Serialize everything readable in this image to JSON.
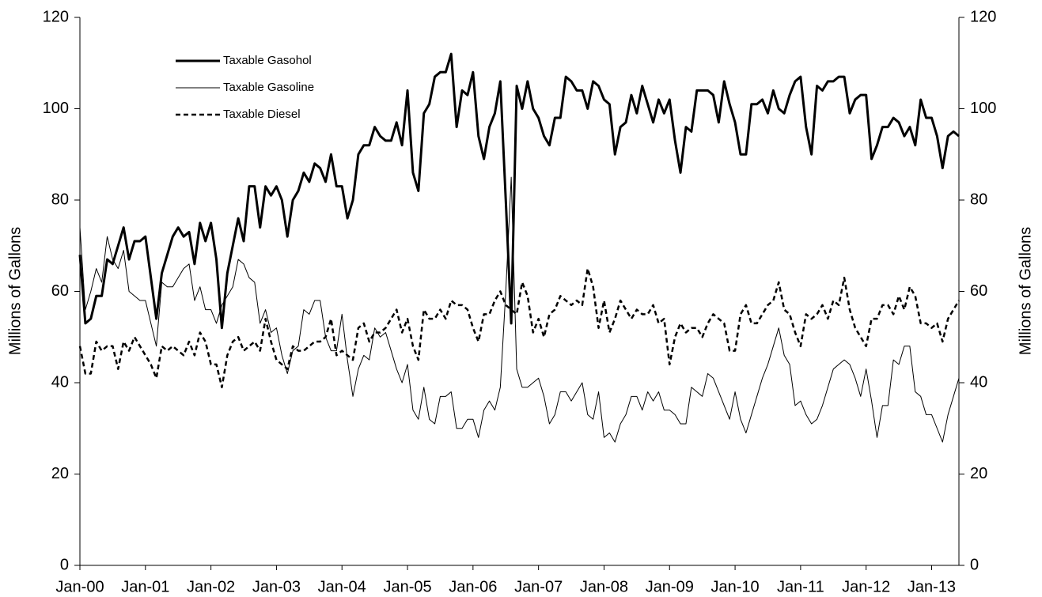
{
  "chart_data": {
    "type": "line",
    "y_label": "Millions of Gallons",
    "y2_label": "Millions of Gallons",
    "categories": [
      "Jan-00",
      null,
      null,
      null,
      null,
      null,
      null,
      null,
      null,
      null,
      null,
      null,
      "Jan-01",
      null,
      null,
      null,
      null,
      null,
      null,
      null,
      null,
      null,
      null,
      null,
      "Jan-02",
      null,
      null,
      null,
      null,
      null,
      null,
      null,
      null,
      null,
      null,
      null,
      "Jan-03",
      null,
      null,
      null,
      null,
      null,
      null,
      null,
      null,
      null,
      null,
      null,
      "Jan-04",
      null,
      null,
      null,
      null,
      null,
      null,
      null,
      null,
      null,
      null,
      null,
      "Jan-05",
      null,
      null,
      null,
      null,
      null,
      null,
      null,
      null,
      null,
      null,
      null,
      "Jan-06",
      null,
      null,
      null,
      null,
      null,
      null,
      null,
      null,
      null,
      null,
      null,
      "Jan-07",
      null,
      null,
      null,
      null,
      null,
      null,
      null,
      null,
      null,
      null,
      null,
      "Jan-08",
      null,
      null,
      null,
      null,
      null,
      null,
      null,
      null,
      null,
      null,
      null,
      "Jan-09",
      null,
      null,
      null,
      null,
      null,
      null,
      null,
      null,
      null,
      null,
      null,
      "Jan-10",
      null,
      null,
      null,
      null,
      null,
      null,
      null,
      null,
      null,
      null,
      null,
      "Jan-11",
      null,
      null,
      null,
      null,
      null,
      null,
      null,
      null,
      null,
      null,
      null,
      "Jan-12",
      null,
      null,
      null,
      null,
      null,
      null,
      null,
      null,
      null,
      null,
      null,
      "Jan-13",
      null,
      null,
      null,
      null,
      null
    ],
    "series": [
      {
        "name": "Taxable Gasohol",
        "color": "#000000",
        "style": "solid",
        "linewidth": 3,
        "values": [
          68,
          53,
          54,
          59,
          59,
          67,
          66,
          70,
          74,
          67,
          71,
          71,
          72,
          63,
          54,
          64,
          68,
          72,
          74,
          72,
          73,
          66,
          75,
          71,
          75,
          67,
          52,
          64,
          70,
          76,
          71,
          83,
          83,
          74,
          83,
          81,
          83,
          80,
          72,
          80,
          82,
          86,
          84,
          88,
          87,
          84,
          90,
          83,
          83,
          76,
          80,
          90,
          92,
          92,
          96,
          94,
          93,
          93,
          97,
          92,
          104,
          86,
          82,
          99,
          101,
          107,
          108,
          108,
          112,
          96,
          104,
          103,
          108,
          94,
          89,
          96,
          99,
          106,
          80,
          53,
          105,
          100,
          106,
          100,
          98,
          94,
          92,
          98,
          98,
          107,
          106,
          104,
          104,
          100,
          106,
          105,
          102,
          101,
          90,
          96,
          97,
          103,
          99,
          105,
          101,
          97,
          102,
          99,
          102,
          93,
          86,
          96,
          95,
          104,
          104,
          104,
          103,
          97,
          106,
          101,
          97,
          90,
          90,
          101,
          101,
          102,
          99,
          104,
          100,
          99,
          103,
          106,
          107,
          96,
          90,
          105,
          104,
          106,
          106,
          107,
          107,
          99,
          102,
          103,
          103,
          89,
          92,
          96,
          96,
          98,
          97,
          94,
          96,
          92,
          102,
          98,
          98,
          94,
          87,
          94,
          95,
          94
        ]
      },
      {
        "name": "Taxable Gasoline",
        "color": "#000000",
        "style": "solid",
        "linewidth": 1,
        "values": [
          74,
          56,
          60,
          65,
          62,
          72,
          67,
          65,
          69,
          60,
          59,
          58,
          58,
          53,
          48,
          62,
          61,
          61,
          63,
          65,
          66,
          58,
          61,
          56,
          56,
          53,
          57,
          59,
          61,
          67,
          66,
          63,
          62,
          53,
          56,
          51,
          52,
          46,
          42,
          47,
          48,
          56,
          55,
          58,
          58,
          50,
          47,
          47,
          55,
          45,
          37,
          43,
          46,
          45,
          52,
          50,
          51,
          47,
          43,
          40,
          44,
          34,
          32,
          39,
          32,
          31,
          37,
          37,
          38,
          30,
          30,
          32,
          32,
          28,
          34,
          36,
          34,
          39,
          60,
          85,
          43,
          39,
          39,
          40,
          41,
          37,
          31,
          33,
          38,
          38,
          36,
          38,
          40,
          33,
          32,
          38,
          28,
          29,
          27,
          31,
          33,
          37,
          37,
          34,
          38,
          36,
          38,
          34,
          34,
          33,
          31,
          31,
          39,
          38,
          37,
          42,
          41,
          38,
          35,
          32,
          38,
          32,
          29,
          33,
          37,
          41,
          44,
          48,
          52,
          46,
          44,
          35,
          36,
          33,
          31,
          32,
          35,
          39,
          43,
          44,
          45,
          44,
          41,
          37,
          43,
          36,
          28,
          35,
          35,
          45,
          44,
          48,
          48,
          38,
          37,
          33,
          33,
          30,
          27,
          33,
          37,
          41
        ]
      },
      {
        "name": "Taxable Diesel",
        "color": "#000000",
        "style": "dashed",
        "linewidth": 2.5,
        "values": [
          48,
          42,
          42,
          49,
          47,
          48,
          48,
          43,
          49,
          47,
          50,
          48,
          46,
          44,
          41,
          48,
          47,
          48,
          47,
          46,
          49,
          46,
          51,
          49,
          44,
          44,
          39,
          46,
          49,
          50,
          47,
          48,
          49,
          47,
          54,
          49,
          45,
          44,
          43,
          48,
          47,
          47,
          48,
          49,
          49,
          50,
          54,
          46,
          47,
          46,
          45,
          52,
          53,
          49,
          51,
          51,
          52,
          54,
          56,
          51,
          54,
          48,
          45,
          56,
          54,
          54,
          56,
          54,
          58,
          57,
          57,
          56,
          52,
          49,
          55,
          55,
          58,
          60,
          57,
          56,
          55,
          62,
          59,
          51,
          54,
          50,
          55,
          56,
          59,
          58,
          57,
          58,
          57,
          65,
          61,
          52,
          58,
          51,
          54,
          58,
          56,
          54,
          56,
          55,
          55,
          57,
          53,
          54,
          44,
          50,
          53,
          51,
          52,
          52,
          50,
          53,
          55,
          54,
          53,
          47,
          47,
          55,
          57,
          53,
          53,
          55,
          57,
          58,
          62,
          56,
          55,
          51,
          48,
          55,
          54,
          55,
          57,
          54,
          58,
          57,
          63,
          56,
          52,
          50,
          48,
          54,
          54,
          57,
          57,
          55,
          59,
          56,
          61,
          59,
          53,
          53,
          52,
          53,
          49,
          54,
          56,
          58
        ]
      }
    ],
    "ylim": [
      0,
      120
    ],
    "yticks": [
      0,
      20,
      40,
      60,
      80,
      100,
      120
    ],
    "y2lim": [
      0,
      120
    ],
    "y2ticks": [
      0,
      20,
      40,
      60,
      80,
      100,
      120
    ],
    "grid": false,
    "legend": "upper left"
  }
}
